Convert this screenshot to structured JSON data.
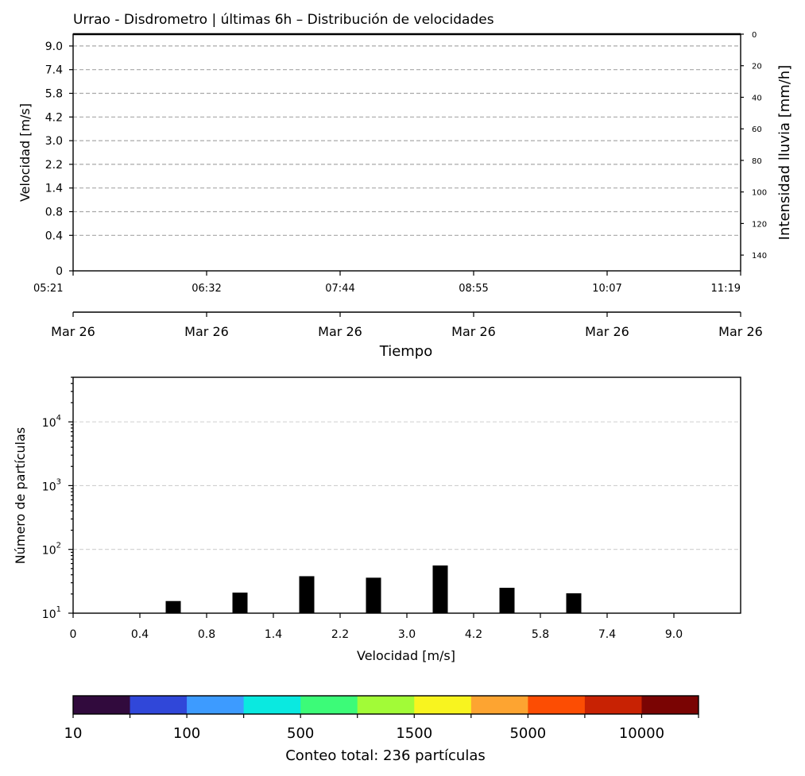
{
  "title": "Urrao - Disdrometro | últimas 6h – Distribución de velocidades",
  "chart_data": [
    {
      "type": "heatmap",
      "ylabel": "Velocidad [m/s]",
      "y_ticks": [
        "0",
        "0.4",
        "0.8",
        "1.4",
        "2.2",
        "3.0",
        "4.2",
        "5.8",
        "7.4",
        "9.0"
      ],
      "x_time_ticks": [
        "05:21",
        "06:32",
        "07:44",
        "08:55",
        "10:07",
        "11:19"
      ],
      "x_date_ticks": [
        "Mar 26",
        "Mar 26",
        "Mar 26",
        "Mar 26",
        "Mar 26",
        "Mar 26"
      ],
      "xlabel": "Tiempo",
      "y2label": "Intensidad lluvia [mm/h]",
      "y2_ticks": [
        0,
        20,
        40,
        60,
        80,
        100,
        120,
        140
      ],
      "y2_range": [
        0,
        150
      ],
      "y2_inverted": true,
      "grid": "y",
      "cells": []
    },
    {
      "type": "bar",
      "ylabel": "Número de partículas",
      "xlabel": "Velocidad [m/s]",
      "yscale": "log",
      "ylim": [
        10,
        50000
      ],
      "y_ticks": [
        {
          "base": "10",
          "exp": "1",
          "value": 10
        },
        {
          "base": "10",
          "exp": "2",
          "value": 100
        },
        {
          "base": "10",
          "exp": "3",
          "value": 1000
        },
        {
          "base": "10",
          "exp": "4",
          "value": 10000
        }
      ],
      "categories": [
        "0",
        "0.4",
        "0.8",
        "1.4",
        "2.2",
        "3.0",
        "4.2",
        "5.8",
        "7.4",
        "9.0"
      ],
      "bars": [
        {
          "x": 0.3,
          "value": 15.5
        },
        {
          "x": 0.5,
          "value": 21
        },
        {
          "x": 0.7,
          "value": 38
        },
        {
          "x": 0.9,
          "value": 36
        },
        {
          "x": 1.1,
          "value": 56
        },
        {
          "x": 1.3,
          "value": 25
        },
        {
          "x": 1.5,
          "value": 20.5
        }
      ],
      "grid": "y"
    },
    {
      "type": "colorbar",
      "colors": [
        "#310a3d",
        "#3047d9",
        "#3d9bff",
        "#0ae9e0",
        "#3cfb78",
        "#a2fb37",
        "#f8f41f",
        "#fda431",
        "#fc4d03",
        "#c82203",
        "#7a0403"
      ],
      "tick_labels": [
        "10",
        "100",
        "500",
        "1500",
        "5000",
        "10000"
      ],
      "label": "Conteo total: 236 partículas"
    }
  ]
}
